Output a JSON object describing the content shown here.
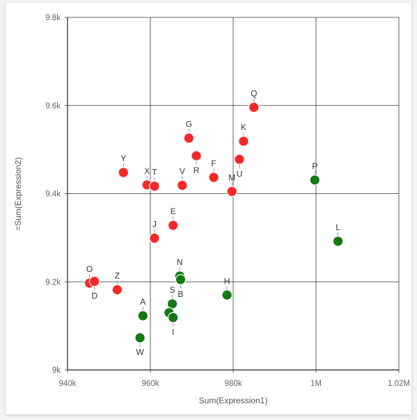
{
  "chart_data": {
    "type": "scatter",
    "xlabel": "Sum(Expression1)",
    "ylabel": "=Sum(Expression2)",
    "xlim": [
      940000,
      1020000
    ],
    "ylim": [
      9000,
      9800
    ],
    "x_ticks": [
      {
        "value": 940000,
        "label": "940k"
      },
      {
        "value": 960000,
        "label": "960k"
      },
      {
        "value": 980000,
        "label": "980k"
      },
      {
        "value": 1000000,
        "label": "1M"
      },
      {
        "value": 1020000,
        "label": "1.02M"
      }
    ],
    "y_ticks": [
      {
        "value": 9000,
        "label": "9k"
      },
      {
        "value": 9200,
        "label": "9.2k"
      },
      {
        "value": 9400,
        "label": "9.4k"
      },
      {
        "value": 9600,
        "label": "9.6k"
      },
      {
        "value": 9800,
        "label": "9.8k"
      }
    ],
    "grid": true,
    "colors": {
      "red": "#f52828",
      "green": "#147814"
    },
    "points": [
      {
        "label": "Q",
        "x": 985000,
        "y": 9596,
        "color": "red",
        "label_pos": "above"
      },
      {
        "label": "K",
        "x": 982500,
        "y": 9519,
        "color": "red",
        "label_pos": "above"
      },
      {
        "label": "G",
        "x": 969300,
        "y": 9526,
        "color": "red",
        "label_pos": "above"
      },
      {
        "label": "R",
        "x": 971100,
        "y": 9486,
        "color": "red",
        "label_pos": "below"
      },
      {
        "label": "U",
        "x": 981500,
        "y": 9478,
        "color": "red",
        "label_pos": "below"
      },
      {
        "label": "Y",
        "x": 953500,
        "y": 9448,
        "color": "red",
        "label_pos": "above"
      },
      {
        "label": "F",
        "x": 975300,
        "y": 9437,
        "color": "red",
        "label_pos": "above"
      },
      {
        "label": "X",
        "x": 959200,
        "y": 9420,
        "color": "red",
        "label_pos": "above"
      },
      {
        "label": "T",
        "x": 961000,
        "y": 9417,
        "color": "red",
        "label_pos": "above"
      },
      {
        "label": "V",
        "x": 967700,
        "y": 9419,
        "color": "red",
        "label_pos": "above"
      },
      {
        "label": "M",
        "x": 979700,
        "y": 9405,
        "color": "red",
        "label_pos": "above"
      },
      {
        "label": "E",
        "x": 965500,
        "y": 9328,
        "color": "red",
        "label_pos": "above"
      },
      {
        "label": "J",
        "x": 961000,
        "y": 9299,
        "color": "red",
        "label_pos": "above"
      },
      {
        "label": "O",
        "x": 945300,
        "y": 9197,
        "color": "red",
        "label_pos": "above"
      },
      {
        "label": "D",
        "x": 946500,
        "y": 9201,
        "color": "red",
        "label_pos": "below"
      },
      {
        "label": "Z",
        "x": 952000,
        "y": 9182,
        "color": "red",
        "label_pos": "above"
      },
      {
        "label": "P",
        "x": 999700,
        "y": 9431,
        "color": "green",
        "label_pos": "above"
      },
      {
        "label": "L",
        "x": 1005300,
        "y": 9292,
        "color": "green",
        "label_pos": "above"
      },
      {
        "label": "N",
        "x": 967100,
        "y": 9213,
        "color": "green",
        "label_pos": "above"
      },
      {
        "label": "B",
        "x": 967300,
        "y": 9205,
        "color": "green",
        "label_pos": "below"
      },
      {
        "label": "H",
        "x": 978500,
        "y": 9170,
        "color": "green",
        "label_pos": "above"
      },
      {
        "label": "S",
        "x": 965300,
        "y": 9150,
        "color": "green",
        "label_pos": "above"
      },
      {
        "label": "A",
        "x": 958200,
        "y": 9123,
        "color": "green",
        "label_pos": "above"
      },
      {
        "label": "",
        "x": 964500,
        "y": 9130,
        "color": "green",
        "label_pos": "none"
      },
      {
        "label": "I",
        "x": 965500,
        "y": 9119,
        "color": "green",
        "label_pos": "below"
      },
      {
        "label": "W",
        "x": 957500,
        "y": 9073,
        "color": "green",
        "label_pos": "below"
      }
    ]
  }
}
